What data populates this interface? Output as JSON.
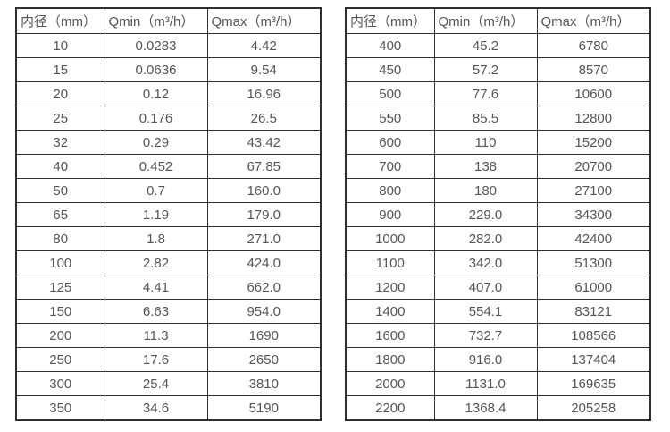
{
  "page": {
    "background_color": "#ffffff",
    "border_color": "#2f2f2f",
    "text_color": "#555555"
  },
  "tables": [
    {
      "name": "flow-table-small-diameters",
      "headers": [
        "内径（mm）",
        "Qmin（m³/h）",
        "Qmax（m³/h）"
      ],
      "rows": [
        [
          "10",
          "0.0283",
          "4.42"
        ],
        [
          "15",
          "0.0636",
          "9.54"
        ],
        [
          "20",
          "0.12",
          "16.96"
        ],
        [
          "25",
          "0.176",
          "26.5"
        ],
        [
          "32",
          "0.29",
          "43.42"
        ],
        [
          "40",
          "0.452",
          "67.85"
        ],
        [
          "50",
          "0.7",
          "160.0"
        ],
        [
          "65",
          "1.19",
          "179.0"
        ],
        [
          "80",
          "1.8",
          "271.0"
        ],
        [
          "100",
          "2.82",
          "424.0"
        ],
        [
          "125",
          "4.41",
          "662.0"
        ],
        [
          "150",
          "6.63",
          "954.0"
        ],
        [
          "200",
          "11.3",
          "1690"
        ],
        [
          "250",
          "17.6",
          "2650"
        ],
        [
          "300",
          "25.4",
          "3810"
        ],
        [
          "350",
          "34.6",
          "5190"
        ]
      ]
    },
    {
      "name": "flow-table-large-diameters",
      "headers": [
        "内径（mm）",
        "Qmin（m³/h）",
        "Qmax（m³/h）"
      ],
      "rows": [
        [
          "400",
          "45.2",
          "6780"
        ],
        [
          "450",
          "57.2",
          "8570"
        ],
        [
          "500",
          "77.6",
          "10600"
        ],
        [
          "550",
          "85.5",
          "12800"
        ],
        [
          "600",
          "110",
          "15200"
        ],
        [
          "700",
          "138",
          "20700"
        ],
        [
          "800",
          "180",
          "27100"
        ],
        [
          "900",
          "229.0",
          "34300"
        ],
        [
          "1000",
          "282.0",
          "42400"
        ],
        [
          "1100",
          "342.0",
          "51300"
        ],
        [
          "1200",
          "407.0",
          "61000"
        ],
        [
          "1400",
          "554.1",
          "83121"
        ],
        [
          "1600",
          "732.7",
          "108566"
        ],
        [
          "1800",
          "916.0",
          "137404"
        ],
        [
          "2000",
          "1131.0",
          "169635"
        ],
        [
          "2200",
          "1368.4",
          "205258"
        ]
      ]
    }
  ]
}
